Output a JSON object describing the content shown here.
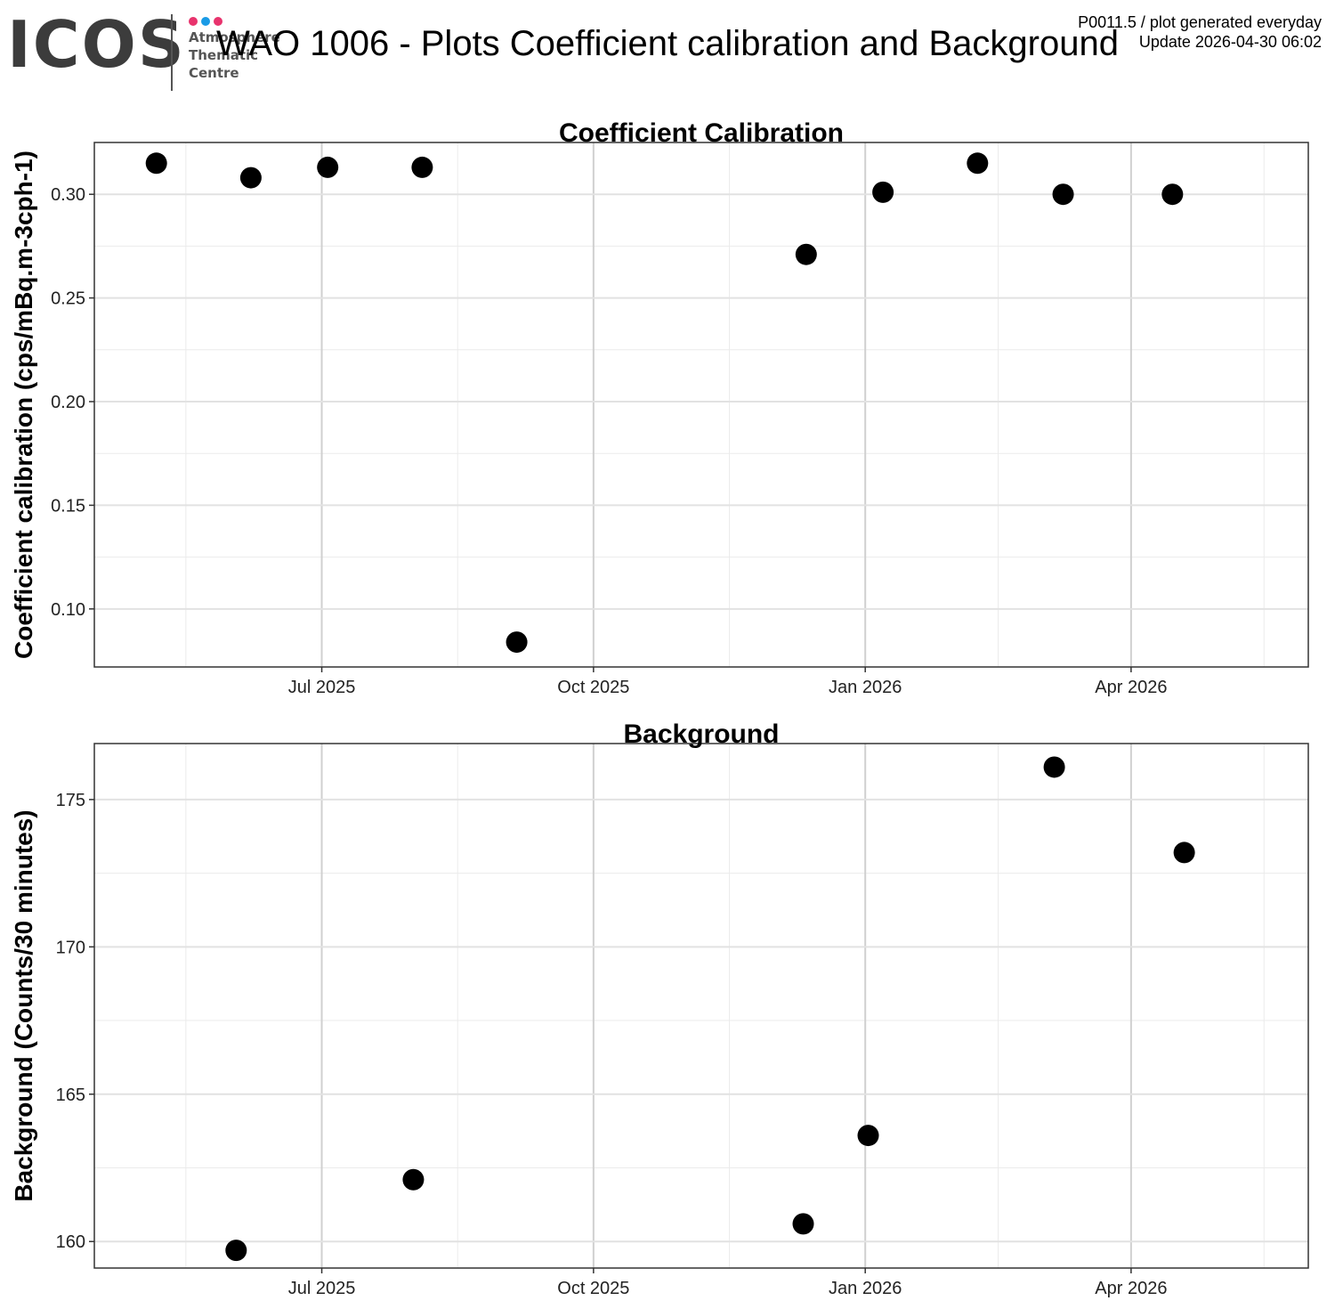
{
  "header": {
    "logo": {
      "word": "ICOS",
      "lines": [
        "Atmosphere",
        "Thematic",
        "Centre"
      ],
      "dot_colors": [
        "#e8336d",
        "#1a9be6",
        "#e8336d"
      ]
    },
    "title": "WAO 1006 - Plots Coefficient calibration and Background",
    "meta_line1": "P0011.5 / plot generated everyday",
    "meta_line2": "Update  2026-04-30 06:02"
  },
  "chart_data": [
    {
      "type": "scatter",
      "title": "Coefficient Calibration",
      "xlabel": "",
      "ylabel": "Coefficient calibration (cps/mBq.m-3cph-1)",
      "xlim": [
        "2025-04-15",
        "2026-05-31"
      ],
      "ylim": [
        0.072,
        0.325
      ],
      "xticks": [
        {
          "date": "2025-07-01",
          "label": "Jul 2025"
        },
        {
          "date": "2025-10-01",
          "label": "Oct 2025"
        },
        {
          "date": "2026-01-01",
          "label": "Jan 2026"
        },
        {
          "date": "2026-04-01",
          "label": "Apr 2026"
        }
      ],
      "xminor": [
        "2025-05-16",
        "2025-08-16",
        "2025-11-16",
        "2026-02-15",
        "2026-05-16"
      ],
      "yticks": [
        0.1,
        0.15,
        0.2,
        0.25,
        0.3
      ],
      "ytick_labels": [
        "0.10",
        "0.15",
        "0.20",
        "0.25",
        "0.30"
      ],
      "yminor": [
        0.125,
        0.175,
        0.225,
        0.275,
        0.325
      ],
      "grid": true,
      "points": [
        {
          "x": "2025-05-06",
          "y": 0.315
        },
        {
          "x": "2025-06-07",
          "y": 0.308
        },
        {
          "x": "2025-07-03",
          "y": 0.313
        },
        {
          "x": "2025-08-04",
          "y": 0.313
        },
        {
          "x": "2025-09-05",
          "y": 0.084
        },
        {
          "x": "2025-12-12",
          "y": 0.271
        },
        {
          "x": "2026-01-07",
          "y": 0.301
        },
        {
          "x": "2026-02-08",
          "y": 0.315
        },
        {
          "x": "2026-03-09",
          "y": 0.3
        },
        {
          "x": "2026-04-15",
          "y": 0.3
        }
      ]
    },
    {
      "type": "scatter",
      "title": "Background",
      "xlabel": "",
      "ylabel": "Background (Counts/30 minutes)",
      "xlim": [
        "2025-04-15",
        "2026-05-31"
      ],
      "ylim": [
        159.1,
        176.9
      ],
      "xticks": [
        {
          "date": "2025-07-01",
          "label": "Jul 2025"
        },
        {
          "date": "2025-10-01",
          "label": "Oct 2025"
        },
        {
          "date": "2026-01-01",
          "label": "Jan 2026"
        },
        {
          "date": "2026-04-01",
          "label": "Apr 2026"
        }
      ],
      "xminor": [
        "2025-05-16",
        "2025-08-16",
        "2025-11-16",
        "2026-02-15",
        "2026-05-16"
      ],
      "yticks": [
        160,
        165,
        170,
        175
      ],
      "ytick_labels": [
        "160",
        "165",
        "170",
        "175"
      ],
      "yminor": [
        162.5,
        167.5,
        172.5
      ],
      "grid": true,
      "points": [
        {
          "x": "2025-06-02",
          "y": 159.7
        },
        {
          "x": "2025-08-01",
          "y": 162.1
        },
        {
          "x": "2025-12-11",
          "y": 160.6
        },
        {
          "x": "2026-01-02",
          "y": 163.6
        },
        {
          "x": "2026-03-06",
          "y": 176.1
        },
        {
          "x": "2026-04-19",
          "y": 173.2
        }
      ]
    }
  ]
}
